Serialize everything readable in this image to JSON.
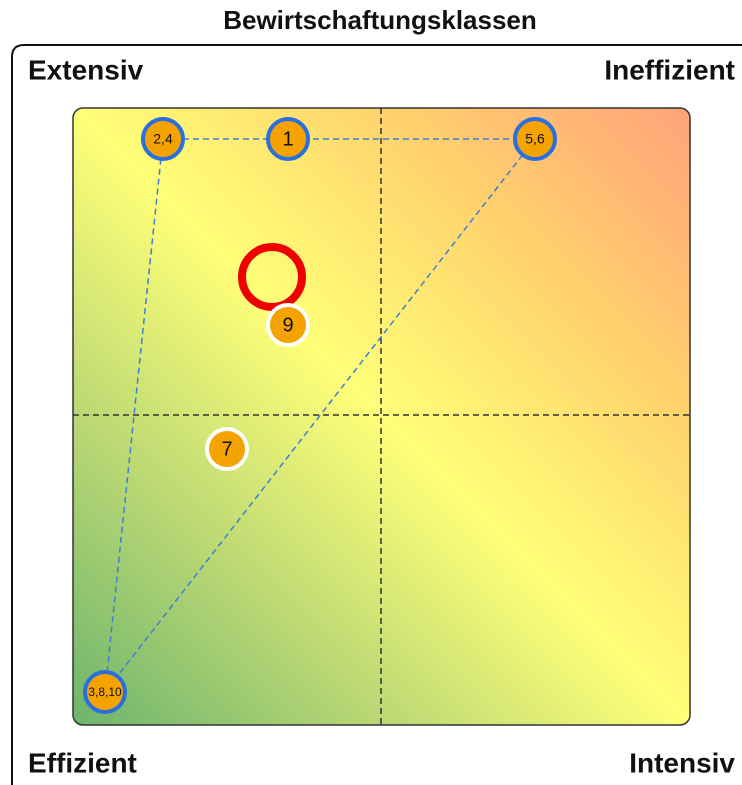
{
  "title": "Bewirtschaftungsklassen",
  "corners": {
    "top_left": "Extensiv",
    "top_right": "Ineffizient",
    "bottom_left": "Effizient",
    "bottom_right": "Intensiv"
  },
  "points": [
    {
      "label": "2,4"
    },
    {
      "label": "1"
    },
    {
      "label": "5,6"
    },
    {
      "label": "9"
    },
    {
      "label": "7"
    },
    {
      "label": "3,8,10"
    }
  ]
}
